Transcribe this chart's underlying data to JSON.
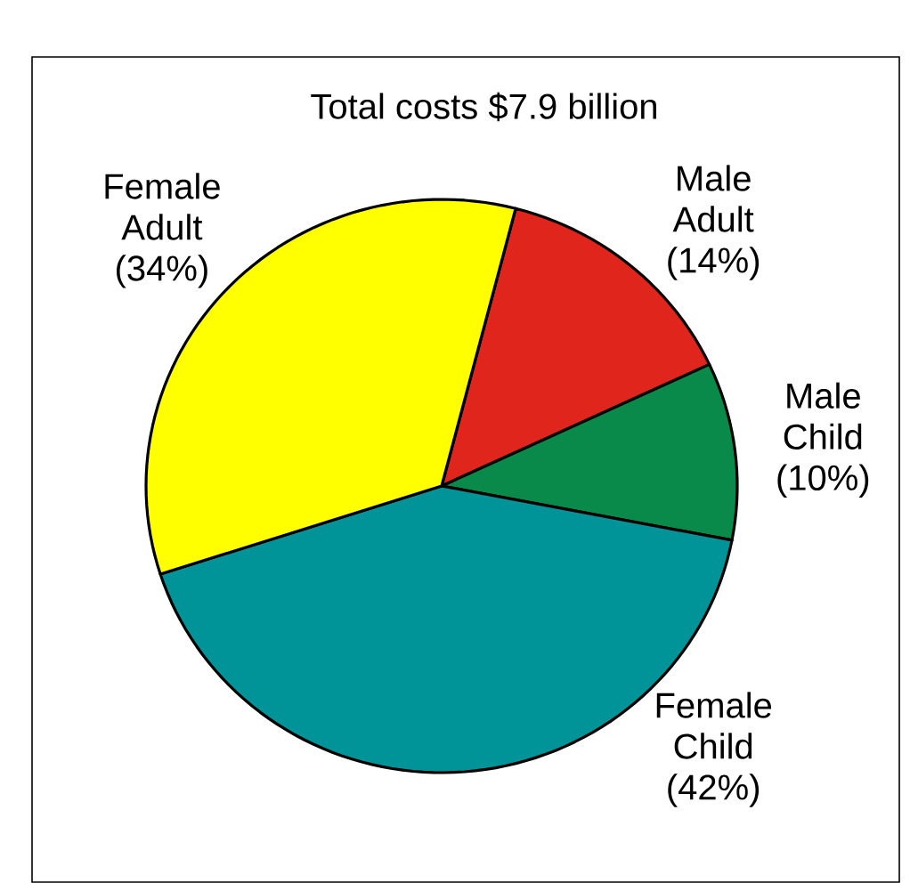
{
  "chart_data": {
    "type": "pie",
    "title": "Total costs $7.9 billion",
    "categories": [
      "Male Adult",
      "Male Child",
      "Female Child",
      "Female Adult"
    ],
    "values": [
      14,
      10,
      42,
      34
    ],
    "value_labels": [
      "(14%)",
      "(10%)",
      "(42%)",
      "(34%)"
    ],
    "colors": [
      "#e0261c",
      "#0a8a4a",
      "#009499",
      "#ffff00"
    ]
  }
}
